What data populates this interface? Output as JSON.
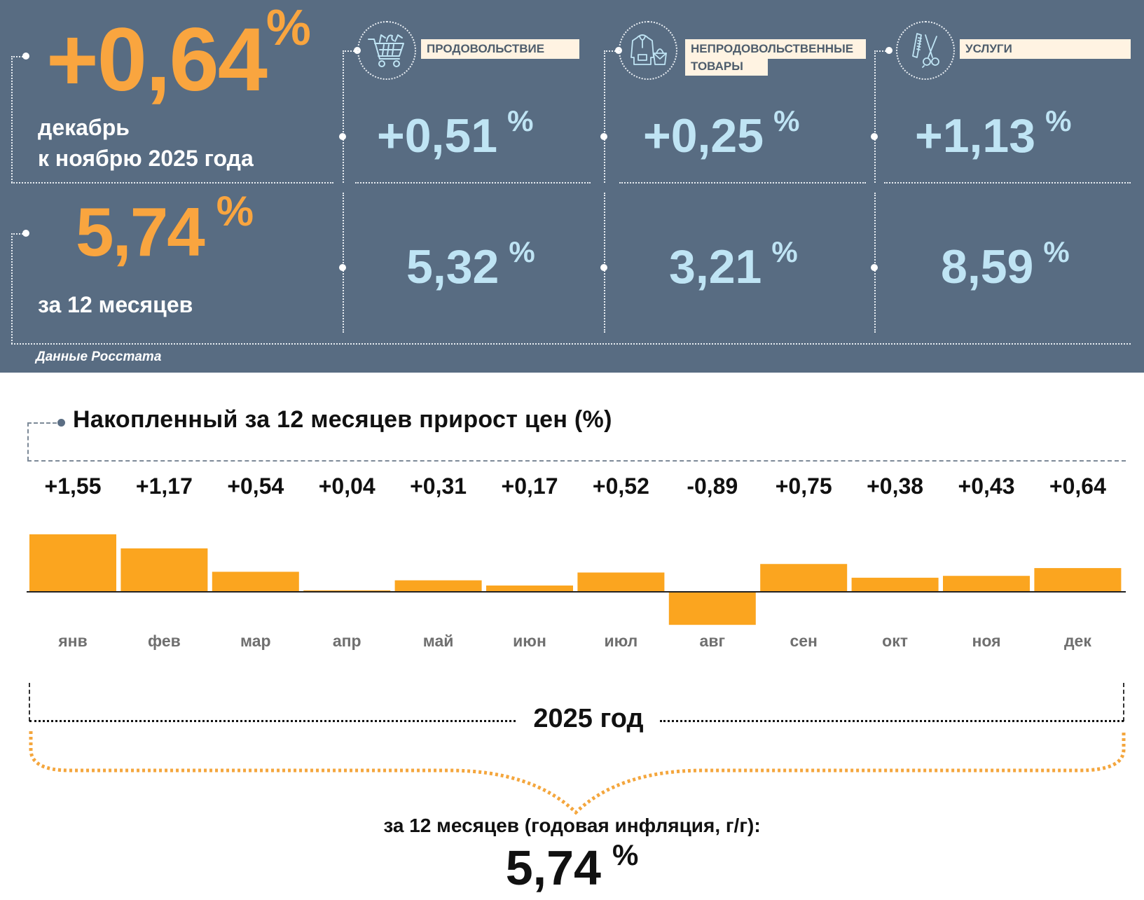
{
  "headline": {
    "monthly_value": "+0,64",
    "monthly_unit": "%",
    "monthly_caption_line1": "декабрь",
    "monthly_caption_line2": "к ноябрю 2025 года",
    "annual_value": "5,74",
    "annual_unit": "%",
    "annual_caption": "за 12 месяцев"
  },
  "categories": [
    {
      "icon": "shopping-cart-icon",
      "label": "ПРОДОВОЛЬСТВИЕ",
      "label_line2": "",
      "monthly": "+0,51",
      "annual": "5,32",
      "unit": "%"
    },
    {
      "icon": "clothing-bag-icon",
      "label": "НЕПРОДОВОЛЬСТВЕННЫЕ",
      "label_line2": "ТОВАРЫ",
      "monthly": "+0,25",
      "annual": "3,21",
      "unit": "%"
    },
    {
      "icon": "comb-scissors-icon",
      "label": "УСЛУГИ",
      "label_line2": "",
      "monthly": "+1,13",
      "annual": "8,59",
      "unit": "%"
    }
  ],
  "source": "Данные Росстата",
  "colors": {
    "panel_bg": "#586c82",
    "accent_orange": "#f9a53f",
    "value_blue": "#bfe4f4",
    "label_bg": "#fff3e2",
    "bar_fill": "#fba51f"
  },
  "chart_data": {
    "type": "bar",
    "title": "Накопленный за 12 месяцев прирост цен (%)",
    "categories": [
      "янв",
      "фев",
      "мар",
      "апр",
      "май",
      "июн",
      "июл",
      "авг",
      "сен",
      "окт",
      "ноя",
      "дек"
    ],
    "values": [
      1.55,
      1.17,
      0.54,
      0.04,
      0.31,
      0.17,
      0.52,
      -0.89,
      0.75,
      0.38,
      0.43,
      0.64
    ],
    "value_labels": [
      "+1,55",
      "+1,17",
      "+0,54",
      "+0,04",
      "+0,31",
      "+0,17",
      "+0,52",
      "-0,89",
      "+0,75",
      "+0,38",
      "+0,43",
      "+0,64"
    ],
    "xlabel": "",
    "ylabel": "",
    "ylim": [
      -0.89,
      1.55
    ],
    "grid": false,
    "legend": "none"
  },
  "period_label": "2025 год",
  "summary": {
    "caption": "за 12 месяцев (годовая инфляция, г/г):",
    "value": "5,74",
    "unit": "%"
  }
}
